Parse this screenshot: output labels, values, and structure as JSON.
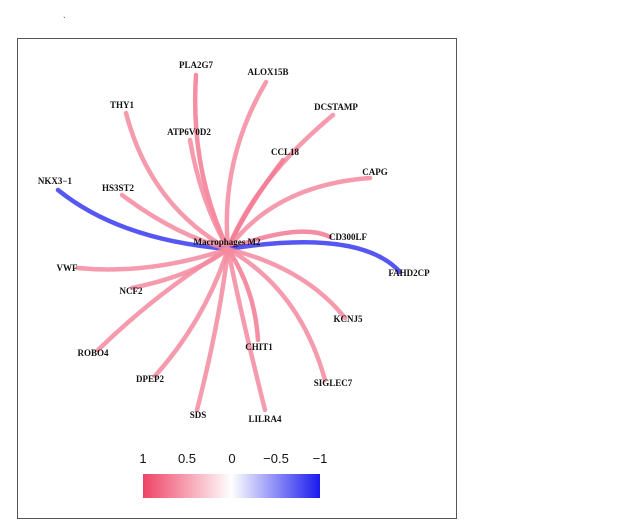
{
  "corner_mark": "ˎ",
  "hub": {
    "label": "Macrophages M2"
  },
  "genes": [
    {
      "label": "PLA2G7",
      "corr": 0.35
    },
    {
      "label": "ALOX15B",
      "corr": 0.3
    },
    {
      "label": "THY1",
      "corr": 0.3
    },
    {
      "label": "DCSTAMP",
      "corr": 0.3
    },
    {
      "label": "ATP6V0D2",
      "corr": 0.3
    },
    {
      "label": "CCL18",
      "corr": 0.35
    },
    {
      "label": "CAPG",
      "corr": 0.3
    },
    {
      "label": "NKX3−1",
      "corr": -0.45
    },
    {
      "label": "HS3ST2",
      "corr": 0.3
    },
    {
      "label": "CD300LF",
      "corr": 0.35
    },
    {
      "label": "FAHD2CP",
      "corr": -0.45
    },
    {
      "label": "VWF",
      "corr": 0.3
    },
    {
      "label": "NCF2",
      "corr": 0.3
    },
    {
      "label": "KCNJ5",
      "corr": 0.3
    },
    {
      "label": "CHIT1",
      "corr": 0.35
    },
    {
      "label": "ROBO4",
      "corr": 0.3
    },
    {
      "label": "DPEP2",
      "corr": 0.3
    },
    {
      "label": "SIGLEC7",
      "corr": 0.3
    },
    {
      "label": "SDS",
      "corr": 0.3
    },
    {
      "label": "LILRA4",
      "corr": 0.3
    }
  ],
  "colorbar": {
    "ticks": [
      "1",
      "0.5",
      "0",
      "−0.5",
      "−1"
    ],
    "colors": {
      "positive": "#ee4466",
      "zero": "#ffffff",
      "negative": "#1a1aee"
    }
  }
}
